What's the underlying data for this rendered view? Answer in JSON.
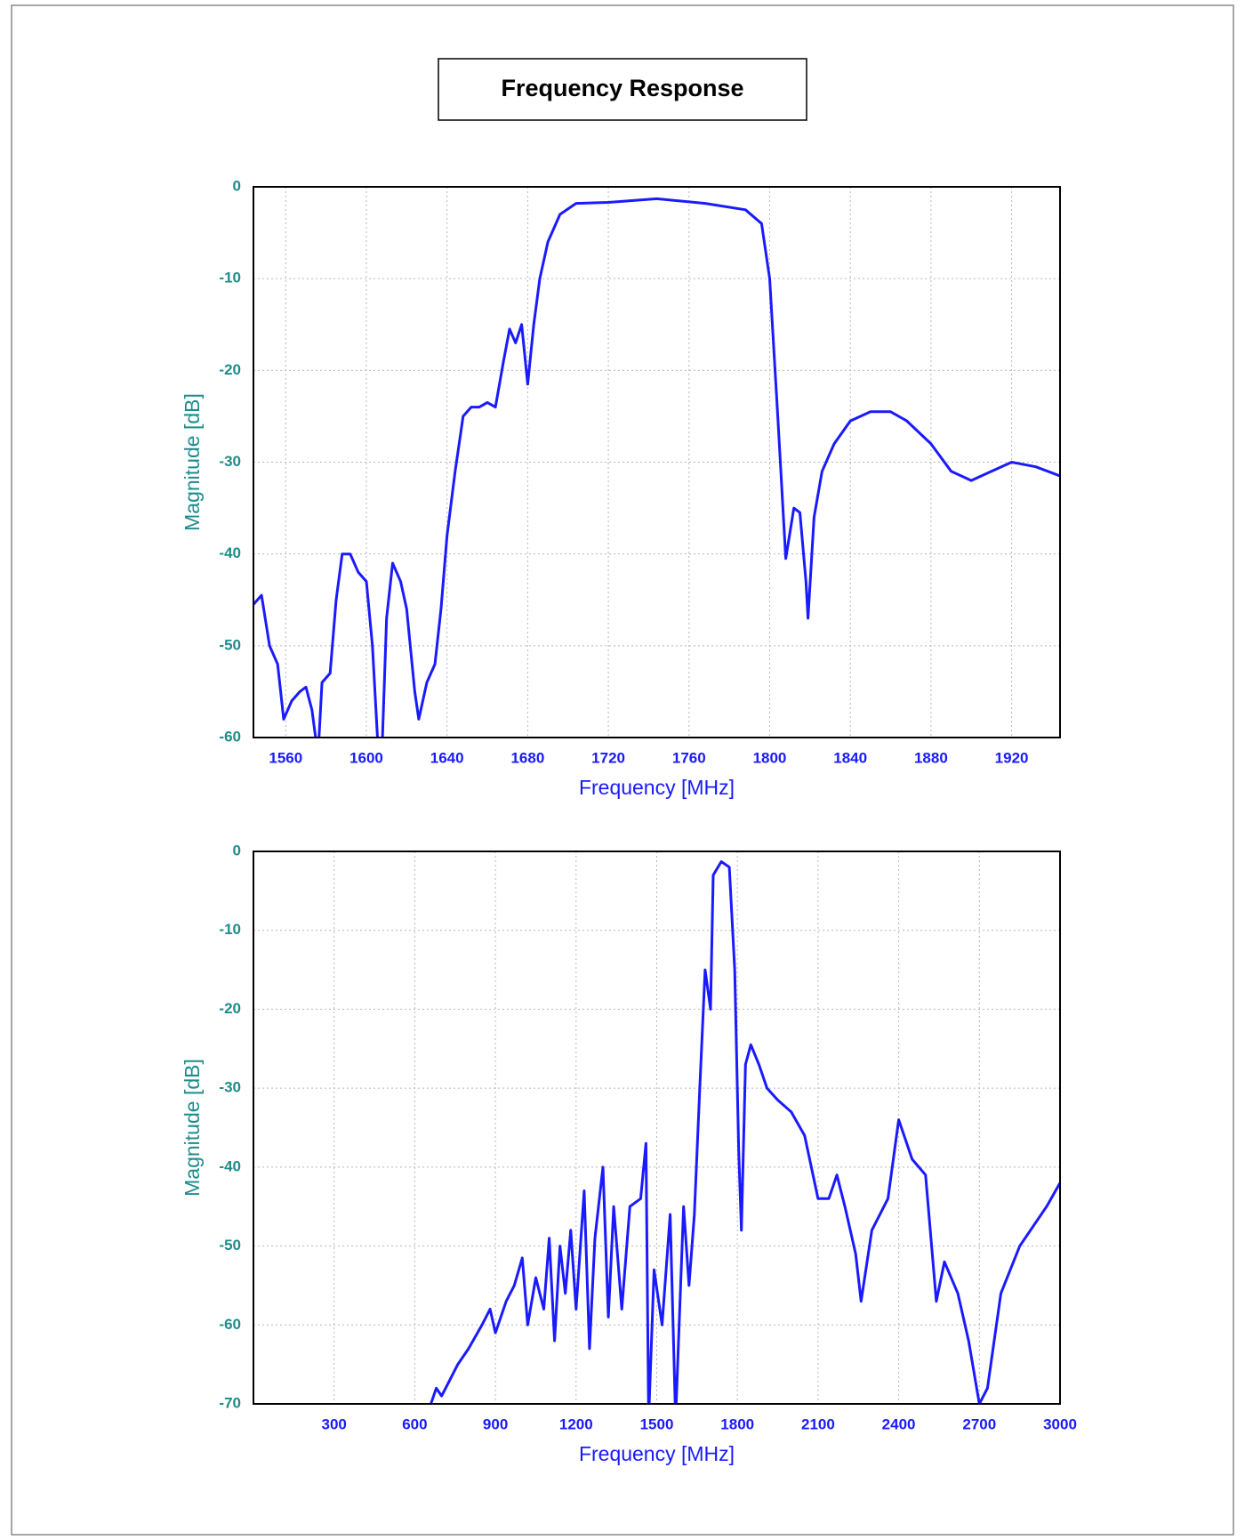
{
  "title": "Frequency Response",
  "chart_data": [
    {
      "type": "line",
      "xlabel": "Frequency [MHz]",
      "ylabel": "Magnitude [dB]",
      "color": "#1a1aff",
      "grid": true,
      "xlim": [
        1544,
        1944
      ],
      "xticks": [
        1560,
        1600,
        1640,
        1680,
        1720,
        1760,
        1800,
        1840,
        1880,
        1920
      ],
      "ylim": [
        -60,
        0
      ],
      "yticks": [
        -60,
        -50,
        -40,
        -30,
        -20,
        -10,
        0
      ],
      "x": [
        1544,
        1548,
        1552,
        1556,
        1559,
        1563,
        1567,
        1570,
        1573,
        1576,
        1578,
        1582,
        1585,
        1588,
        1592,
        1596,
        1600,
        1603,
        1606,
        1608,
        1610,
        1613,
        1617,
        1620,
        1624,
        1626,
        1630,
        1634,
        1637,
        1640,
        1644,
        1648,
        1652,
        1656,
        1660,
        1664,
        1668,
        1671,
        1674,
        1677,
        1680,
        1683,
        1686,
        1690,
        1696,
        1704,
        1720,
        1744,
        1768,
        1788,
        1796,
        1800,
        1804,
        1808,
        1812,
        1815,
        1818,
        1819,
        1822,
        1826,
        1832,
        1840,
        1850,
        1860,
        1868,
        1880,
        1890,
        1900,
        1910,
        1920,
        1932,
        1944
      ],
      "values": [
        -45.5,
        -44.5,
        -50,
        -52,
        -58,
        -56,
        -55,
        -54.5,
        -57,
        -62,
        -54,
        -53,
        -45,
        -40,
        -40,
        -42,
        -43,
        -50,
        -62,
        -60,
        -47,
        -41,
        -43,
        -46,
        -55,
        -58,
        -54,
        -52,
        -46,
        -38,
        -31,
        -25,
        -24,
        -24,
        -23.5,
        -24,
        -19,
        -15.5,
        -17,
        -15,
        -21.5,
        -15,
        -10,
        -6,
        -3,
        -1.8,
        -1.7,
        -1.3,
        -1.8,
        -2.5,
        -4,
        -10,
        -25,
        -40.5,
        -35,
        -35.5,
        -43,
        -47,
        -36,
        -31,
        -28,
        -25.5,
        -24.5,
        -24.5,
        -25.5,
        -28,
        -31,
        -32,
        -31,
        -30,
        -30.5,
        -31.5
      ]
    },
    {
      "type": "line",
      "xlabel": "Frequency [MHz]",
      "ylabel": "Magnitude [dB]",
      "color": "#1a1aff",
      "grid": true,
      "xlim": [
        0,
        3000
      ],
      "xticks": [
        300,
        600,
        900,
        1200,
        1500,
        1800,
        2100,
        2400,
        2700,
        3000
      ],
      "ylim": [
        -70,
        0
      ],
      "yticks": [
        -70,
        -60,
        -50,
        -40,
        -30,
        -20,
        -10,
        0
      ],
      "x": [
        650,
        680,
        700,
        730,
        760,
        800,
        850,
        880,
        900,
        940,
        970,
        1000,
        1020,
        1050,
        1080,
        1100,
        1120,
        1140,
        1160,
        1180,
        1200,
        1230,
        1250,
        1270,
        1300,
        1320,
        1340,
        1370,
        1400,
        1440,
        1460,
        1470,
        1490,
        1520,
        1550,
        1570,
        1600,
        1620,
        1640,
        1660,
        1680,
        1700,
        1710,
        1740,
        1770,
        1790,
        1805,
        1815,
        1830,
        1850,
        1880,
        1910,
        1950,
        2000,
        2050,
        2100,
        2140,
        2170,
        2200,
        2240,
        2260,
        2300,
        2360,
        2400,
        2450,
        2500,
        2540,
        2570,
        2620,
        2660,
        2700,
        2730,
        2780,
        2850,
        2950,
        3000
      ],
      "values": [
        -71,
        -68,
        -69,
        -67,
        -65,
        -63,
        -60,
        -58,
        -61,
        -57,
        -55,
        -51.5,
        -60,
        -54,
        -58,
        -49,
        -62,
        -50,
        -56,
        -48,
        -58,
        -43,
        -63,
        -49,
        -40,
        -59,
        -45,
        -58,
        -45,
        -44,
        -37,
        -72,
        -53,
        -60,
        -46,
        -72,
        -45,
        -55,
        -46,
        -30,
        -15,
        -20,
        -3,
        -1.3,
        -2,
        -15,
        -38,
        -48,
        -27,
        -24.5,
        -27,
        -30,
        -31.5,
        -33,
        -36,
        -44,
        -44,
        -41,
        -45,
        -51,
        -57,
        -48,
        -44,
        -34,
        -39,
        -41,
        -57,
        -52,
        -56,
        -62,
        -70,
        -68,
        -56,
        -50,
        -45,
        -42
      ]
    }
  ]
}
